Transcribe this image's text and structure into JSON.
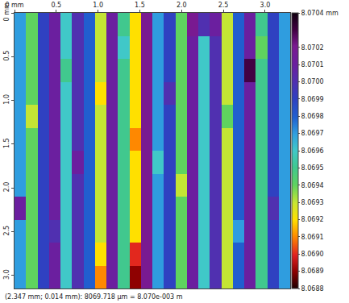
{
  "chart_data": {
    "type": "heatmap",
    "x": [
      0.06875,
      0.20625,
      0.34375,
      0.48125,
      0.61875,
      0.75625,
      0.89375,
      1.03125,
      1.16875,
      1.30625,
      1.44375,
      1.58125,
      1.71875,
      1.85625,
      1.99375,
      2.13125,
      2.26875,
      2.40625,
      2.54375,
      2.68125,
      2.81875,
      2.95625,
      3.09375,
      3.23125
    ],
    "y": [
      0.13125,
      0.39375,
      0.65625,
      0.91875,
      1.18125,
      1.44375,
      1.70625,
      1.96875,
      2.23125,
      2.49375,
      2.75625,
      3.01875
    ],
    "z": [
      [
        8.0697,
        8.0694,
        8.0699,
        8.0701,
        8.0696,
        8.07,
        8.0698,
        8.0693,
        8.0701,
        8.0695,
        8.0692,
        8.0702,
        8.0697,
        8.0699,
        8.0694,
        8.0702,
        8.07,
        8.0701,
        8.0693,
        8.0698,
        8.0701,
        8.0695,
        8.0699,
        8.0697
      ],
      [
        8.0697,
        8.0694,
        8.0699,
        8.0701,
        8.0696,
        8.07,
        8.0698,
        8.0693,
        8.0701,
        8.0696,
        8.0692,
        8.0702,
        8.0697,
        8.0699,
        8.0694,
        8.0701,
        8.0696,
        8.07,
        8.0693,
        8.0698,
        8.0701,
        8.0694,
        8.0699,
        8.0697
      ],
      [
        8.0697,
        8.0694,
        8.0699,
        8.0701,
        8.0695,
        8.07,
        8.0698,
        8.0693,
        8.0701,
        8.0695,
        8.0692,
        8.0702,
        8.0697,
        8.0699,
        8.0694,
        8.0701,
        8.0696,
        8.07,
        8.0693,
        8.0698,
        8.0703,
        8.0695,
        8.0699,
        8.0697
      ],
      [
        8.0697,
        8.0694,
        8.0699,
        8.0701,
        8.0696,
        8.07,
        8.0698,
        8.0692,
        8.0701,
        8.0695,
        8.0692,
        8.0702,
        8.0697,
        8.07,
        8.0694,
        8.0701,
        8.0696,
        8.07,
        8.0693,
        8.0698,
        8.0701,
        8.0695,
        8.0699,
        8.0697
      ],
      [
        8.0697,
        8.0693,
        8.0699,
        8.0701,
        8.0696,
        8.07,
        8.0698,
        8.0693,
        8.0701,
        8.0695,
        8.0692,
        8.0702,
        8.0697,
        8.0699,
        8.0694,
        8.0701,
        8.0696,
        8.07,
        8.0694,
        8.0698,
        8.0701,
        8.0695,
        8.0699,
        8.0697
      ],
      [
        8.0697,
        8.0694,
        8.0699,
        8.0701,
        8.0696,
        8.07,
        8.0698,
        8.0693,
        8.0701,
        8.0695,
        8.0691,
        8.0702,
        8.0697,
        8.0699,
        8.0694,
        8.0701,
        8.0696,
        8.07,
        8.0693,
        8.0698,
        8.0701,
        8.0695,
        8.0699,
        8.0697
      ],
      [
        8.0697,
        8.0694,
        8.0699,
        8.0701,
        8.0696,
        8.0701,
        8.0698,
        8.0693,
        8.0701,
        8.0695,
        8.0692,
        8.0702,
        8.0696,
        8.0699,
        8.0694,
        8.0701,
        8.0696,
        8.07,
        8.0693,
        8.0698,
        8.0701,
        8.0695,
        8.0699,
        8.0697
      ],
      [
        8.0697,
        8.0694,
        8.0699,
        8.0701,
        8.0696,
        8.07,
        8.0698,
        8.0693,
        8.0701,
        8.0695,
        8.0692,
        8.0702,
        8.0697,
        8.0699,
        8.0693,
        8.0701,
        8.0696,
        8.07,
        8.0693,
        8.0698,
        8.0701,
        8.0695,
        8.0699,
        8.0697
      ],
      [
        8.0701,
        8.0694,
        8.0699,
        8.0701,
        8.0696,
        8.07,
        8.0698,
        8.0693,
        8.0701,
        8.0695,
        8.0692,
        8.0702,
        8.0697,
        8.0699,
        8.0694,
        8.0701,
        8.0696,
        8.07,
        8.0693,
        8.0698,
        8.0701,
        8.0695,
        8.07,
        8.0697
      ],
      [
        8.0697,
        8.0694,
        8.0699,
        8.07,
        8.0696,
        8.07,
        8.0698,
        8.0693,
        8.0701,
        8.0695,
        8.0692,
        8.0702,
        8.0697,
        8.0699,
        8.0694,
        8.0701,
        8.0696,
        8.07,
        8.0693,
        8.0697,
        8.0701,
        8.0695,
        8.0699,
        8.0697
      ],
      [
        8.0697,
        8.0694,
        8.0699,
        8.0701,
        8.0696,
        8.07,
        8.0698,
        8.0692,
        8.0701,
        8.0695,
        8.069,
        8.0702,
        8.0697,
        8.0699,
        8.0694,
        8.0701,
        8.0696,
        8.07,
        8.0693,
        8.0698,
        8.0701,
        8.0695,
        8.0699,
        8.0697
      ],
      [
        8.0697,
        8.0694,
        8.0699,
        8.0701,
        8.0696,
        8.07,
        8.0698,
        8.0691,
        8.0701,
        8.0695,
        8.0689,
        8.0702,
        8.0697,
        8.0699,
        8.0694,
        8.0701,
        8.0696,
        8.07,
        8.0693,
        8.0698,
        8.0701,
        8.0695,
        8.0699,
        8.0697
      ]
    ],
    "xlim": [
      0,
      3.3
    ],
    "ylim": [
      3.15,
      0
    ],
    "xticks": [
      {
        "value": 0,
        "label": "0 mm"
      },
      {
        "value": 0.5,
        "label": "0.5"
      },
      {
        "value": 1,
        "label": "1.0"
      },
      {
        "value": 1.5,
        "label": "1.5"
      },
      {
        "value": 2,
        "label": "2.0"
      },
      {
        "value": 2.5,
        "label": "2.5"
      },
      {
        "value": 3,
        "label": "3.0"
      }
    ],
    "yticks": [
      {
        "value": 0,
        "label": "0 mm"
      },
      {
        "value": 0.5,
        "label": "0.5"
      },
      {
        "value": 1,
        "label": "1.0"
      },
      {
        "value": 1.5,
        "label": "1.5"
      },
      {
        "value": 2,
        "label": "2.0"
      },
      {
        "value": 2.5,
        "label": "2.5"
      },
      {
        "value": 3,
        "label": "3.0"
      }
    ],
    "zlim": [
      8.0688,
      8.0704
    ],
    "zticks": [
      {
        "value": 8.0704,
        "label": "8.0704 mm"
      },
      {
        "value": 8.0702,
        "label": "8.0702"
      },
      {
        "value": 8.0701,
        "label": "8.0701"
      },
      {
        "value": 8.07,
        "label": "8.0700"
      },
      {
        "value": 8.0699,
        "label": "8.0699"
      },
      {
        "value": 8.0698,
        "label": "8.0698"
      },
      {
        "value": 8.0697,
        "label": "8.0697"
      },
      {
        "value": 8.0696,
        "label": "8.0696"
      },
      {
        "value": 8.0695,
        "label": "8.0695"
      },
      {
        "value": 8.0694,
        "label": "8.0694"
      },
      {
        "value": 8.0693,
        "label": "8.0693"
      },
      {
        "value": 8.0692,
        "label": "8.0692"
      },
      {
        "value": 8.0691,
        "label": "8.0691"
      },
      {
        "value": 8.069,
        "label": "8.0690"
      },
      {
        "value": 8.0689,
        "label": "8.0689"
      },
      {
        "value": 8.0688,
        "label": "8.0688"
      }
    ],
    "annotations": [
      "(2.347 mm; 0.014 mm): 8069.718 µm = 8.070e-003 m"
    ]
  }
}
